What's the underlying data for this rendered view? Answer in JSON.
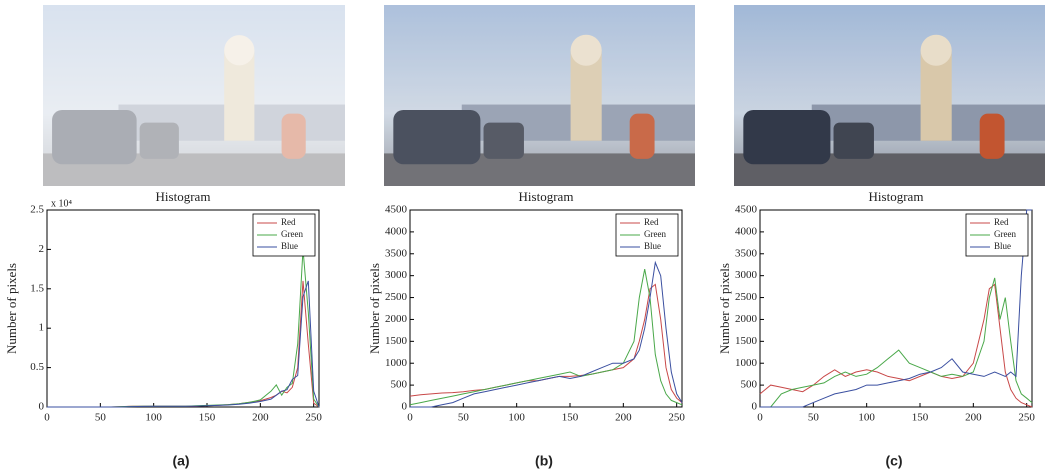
{
  "chart_data": [
    {
      "type": "line",
      "title": "Histogram",
      "y_label": "Number of pixels",
      "caption": "(a)",
      "y_multiplier": "x 10⁴",
      "x": [
        0,
        10,
        20,
        30,
        40,
        50,
        60,
        70,
        80,
        90,
        100,
        110,
        120,
        130,
        140,
        150,
        160,
        170,
        180,
        190,
        200,
        210,
        215,
        220,
        225,
        230,
        235,
        240,
        245,
        250,
        255
      ],
      "series": [
        {
          "name": "Red",
          "color": "#c84848",
          "values": [
            0,
            0,
            0,
            0,
            0,
            0,
            0,
            50,
            100,
            100,
            100,
            100,
            100,
            100,
            100,
            150,
            200,
            300,
            400,
            600,
            800,
            1200,
            1500,
            2000,
            1800,
            2500,
            5000,
            16000,
            8000,
            500,
            0
          ]
        },
        {
          "name": "Green",
          "color": "#4aa84a",
          "values": [
            0,
            0,
            0,
            0,
            0,
            0,
            0,
            50,
            80,
            100,
            100,
            100,
            100,
            100,
            150,
            200,
            250,
            300,
            400,
            600,
            900,
            2000,
            2800,
            1500,
            2500,
            3000,
            8000,
            20000,
            12000,
            1000,
            0
          ]
        },
        {
          "name": "Blue",
          "color": "#3a4fa0",
          "values": [
            0,
            0,
            0,
            0,
            0,
            0,
            0,
            0,
            50,
            80,
            100,
            100,
            100,
            100,
            120,
            150,
            200,
            250,
            350,
            500,
            700,
            1000,
            1500,
            2000,
            2200,
            3500,
            4000,
            14000,
            16000,
            2000,
            0
          ]
        }
      ],
      "xlim": [
        0,
        255
      ],
      "ylim": [
        0,
        25000
      ],
      "xticks": [
        0,
        50,
        100,
        150,
        200,
        250
      ],
      "yticks": [
        0,
        {
          "value": 5000,
          "label": "0.5"
        },
        {
          "value": 10000,
          "label": "1"
        },
        {
          "value": 15000,
          "label": "1.5"
        },
        {
          "value": 20000,
          "label": "2"
        },
        {
          "value": 25000,
          "label": "2.5"
        }
      ],
      "legend": "upper right"
    },
    {
      "type": "line",
      "title": "Histogram",
      "y_label": "Number of pixels",
      "caption": "(b)",
      "x": [
        0,
        10,
        20,
        30,
        40,
        50,
        60,
        70,
        80,
        90,
        100,
        110,
        120,
        130,
        140,
        150,
        160,
        170,
        180,
        190,
        200,
        210,
        215,
        220,
        225,
        230,
        235,
        240,
        245,
        250,
        255
      ],
      "series": [
        {
          "name": "Red",
          "color": "#c84848",
          "values": [
            250,
            280,
            300,
            320,
            330,
            350,
            380,
            400,
            450,
            500,
            550,
            600,
            600,
            650,
            700,
            700,
            720,
            750,
            800,
            850,
            900,
            1100,
            1500,
            2000,
            2700,
            2800,
            2000,
            900,
            400,
            200,
            100
          ]
        },
        {
          "name": "Green",
          "color": "#4aa84a",
          "values": [
            50,
            100,
            150,
            200,
            250,
            300,
            350,
            400,
            450,
            500,
            550,
            600,
            650,
            700,
            750,
            800,
            700,
            750,
            800,
            850,
            1000,
            1500,
            2500,
            3150,
            2500,
            1200,
            600,
            300,
            150,
            100,
            50
          ]
        },
        {
          "name": "Blue",
          "color": "#3a4fa0",
          "values": [
            0,
            0,
            0,
            50,
            100,
            200,
            300,
            350,
            400,
            450,
            500,
            550,
            600,
            650,
            700,
            650,
            700,
            800,
            900,
            1000,
            1000,
            1100,
            1300,
            1800,
            2500,
            3300,
            3000,
            1800,
            800,
            300,
            100
          ]
        }
      ],
      "xlim": [
        0,
        255
      ],
      "ylim": [
        0,
        4500
      ],
      "xticks": [
        0,
        50,
        100,
        150,
        200,
        250
      ],
      "yticks": [
        0,
        500,
        1000,
        1500,
        2000,
        2500,
        3000,
        3500,
        4000,
        4500
      ],
      "legend": "upper right"
    },
    {
      "type": "line",
      "title": "Histogram",
      "y_label": "Number of pixels",
      "caption": "(c)",
      "x": [
        0,
        10,
        20,
        30,
        40,
        50,
        60,
        70,
        80,
        90,
        100,
        110,
        120,
        130,
        140,
        150,
        160,
        170,
        180,
        190,
        200,
        210,
        215,
        220,
        225,
        230,
        235,
        240,
        245,
        250,
        255
      ],
      "series": [
        {
          "name": "Red",
          "color": "#c84848",
          "values": [
            300,
            500,
            450,
            400,
            350,
            500,
            700,
            850,
            700,
            800,
            850,
            800,
            700,
            650,
            600,
            700,
            800,
            700,
            650,
            700,
            1000,
            2000,
            2700,
            2800,
            1800,
            800,
            400,
            200,
            100,
            50,
            0
          ]
        },
        {
          "name": "Green",
          "color": "#4aa84a",
          "values": [
            0,
            0,
            300,
            400,
            450,
            500,
            550,
            700,
            800,
            700,
            750,
            900,
            1100,
            1300,
            1000,
            900,
            800,
            700,
            750,
            700,
            800,
            1500,
            2500,
            2950,
            2000,
            2500,
            1500,
            600,
            300,
            200,
            100
          ]
        },
        {
          "name": "Blue",
          "color": "#3a4fa0",
          "values": [
            0,
            0,
            0,
            0,
            0,
            100,
            200,
            300,
            350,
            400,
            500,
            500,
            550,
            600,
            650,
            750,
            800,
            900,
            1100,
            800,
            750,
            700,
            750,
            800,
            750,
            700,
            800,
            700,
            3000,
            4500,
            4500
          ]
        }
      ],
      "xlim": [
        0,
        255
      ],
      "ylim": [
        0,
        4500
      ],
      "xticks": [
        0,
        50,
        100,
        150,
        200,
        250
      ],
      "yticks": [
        0,
        500,
        1000,
        1500,
        2000,
        2500,
        3000,
        3500,
        4000,
        4500
      ],
      "legend": "upper right"
    }
  ]
}
